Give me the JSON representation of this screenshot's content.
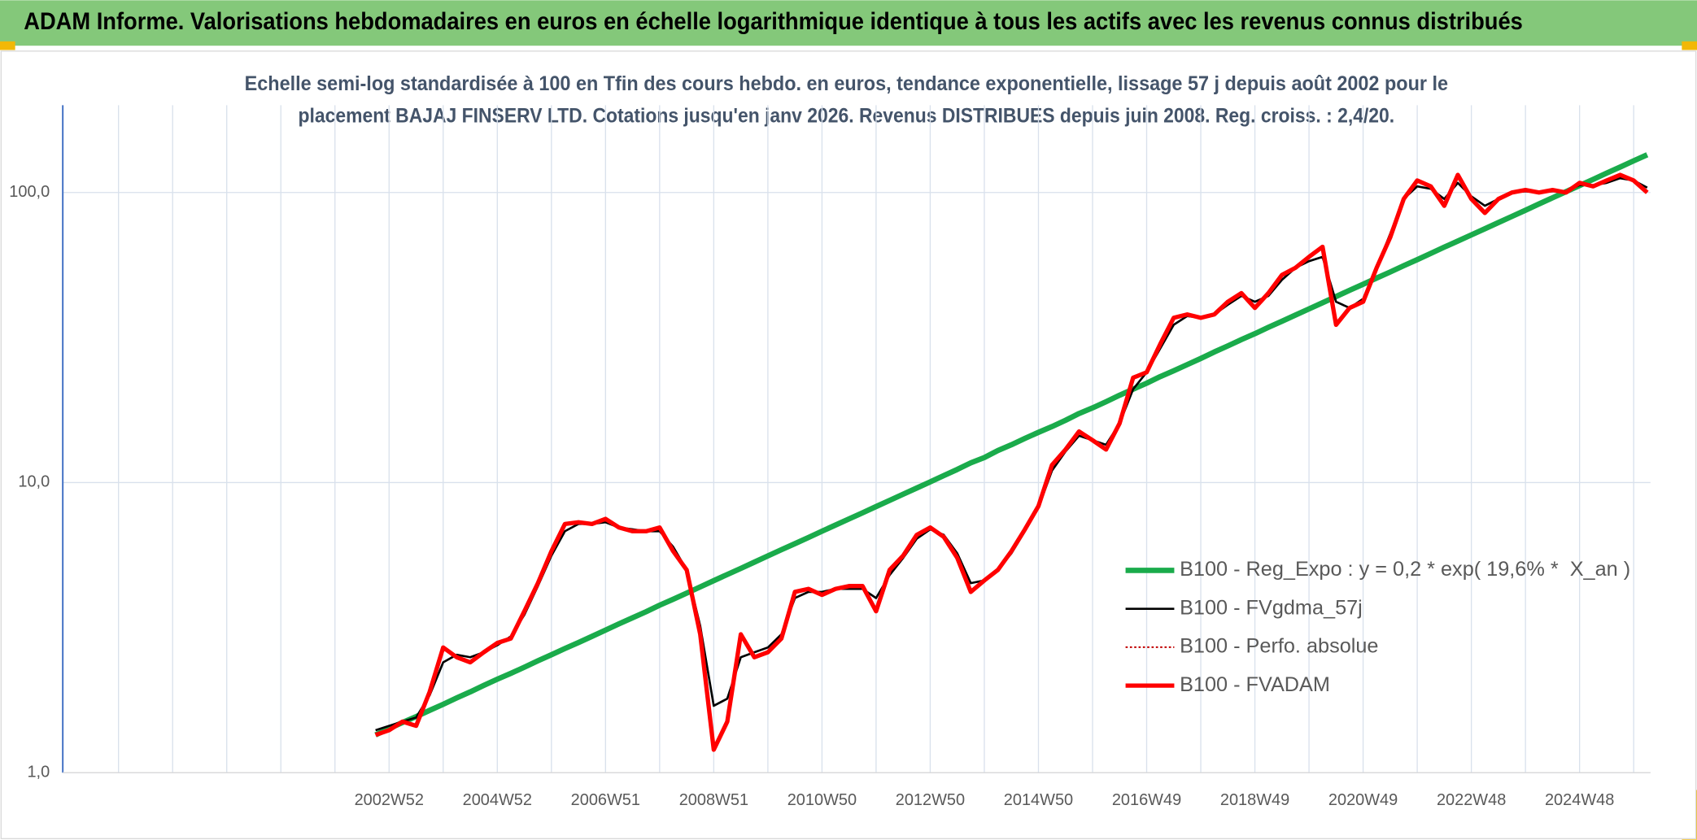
{
  "chart_data": {
    "type": "line",
    "title": "ADAM Informe. Valorisations hebdomadaires en euros en échelle logarithmique identique à tous les actifs avec les revenus connus distribués",
    "subtitle": [
      "Echelle semi-log standardisée à 100 en Tfin des cours hebdo. en euros, tendance exponentielle, lissage 57 j depuis août 2002 pour le",
      "placement BAJAJ FINSERV LTD. Cotations jusqu'en janv 2026. Revenus DISTRIBUES depuis juin 2008. Reg. croiss. : 2,4/20."
    ],
    "categories": [
      null,
      "2002W52",
      null,
      null,
      null,
      null,
      null,
      null,
      null,
      "2004W52",
      null,
      null,
      null,
      null,
      null,
      null,
      null,
      "2006W51",
      null,
      null,
      null,
      null,
      null,
      null,
      null,
      "2008W51",
      null,
      null,
      null,
      null,
      null,
      null,
      null,
      "2010W50",
      null,
      null,
      null,
      null,
      null,
      null,
      null,
      "2012W50",
      null,
      null,
      null,
      null,
      null,
      null,
      null,
      "2014W50",
      null,
      null,
      null,
      null,
      null,
      null,
      null,
      "2016W49",
      null,
      null,
      null,
      null,
      null,
      null,
      null,
      "2018W49",
      null,
      null,
      null,
      null,
      null,
      null,
      null,
      "2020W49",
      null,
      null,
      null,
      null,
      null,
      null,
      null,
      "2022W48",
      null,
      null,
      null,
      null,
      null,
      null,
      null,
      "2024W48",
      null,
      null,
      null,
      null,
      null
    ],
    "log_y": true,
    "ylim": [
      1,
      200
    ],
    "yticks": [
      {
        "value": 1,
        "label": "1,0"
      },
      {
        "value": 10,
        "label": "10,0"
      },
      {
        "value": 100,
        "label": "100,0"
      }
    ],
    "grid": true,
    "legend": "lower right",
    "series": [
      {
        "name": "B100 - Reg_Expo : y = 0,2 * exp( 19,6% *  X_an )",
        "color": "#1aab4b",
        "width": 5,
        "dash": "solid",
        "values": [
          1.35,
          1.42,
          1.49,
          1.56,
          1.64,
          1.72,
          1.81,
          1.9,
          2.0,
          2.1,
          2.2,
          2.31,
          2.43,
          2.55,
          2.68,
          2.81,
          2.95,
          3.1,
          3.26,
          3.42,
          3.59,
          3.78,
          3.96,
          4.16,
          4.37,
          4.59,
          4.82,
          5.06,
          5.32,
          5.59,
          5.87,
          6.16,
          6.47,
          6.8,
          7.14,
          7.5,
          7.87,
          8.27,
          8.68,
          9.12,
          9.58,
          10.06,
          10.57,
          11.1,
          11.7,
          12.2,
          12.9,
          13.5,
          14.2,
          14.9,
          15.6,
          16.4,
          17.3,
          18.1,
          19.0,
          20.0,
          21.0,
          22.0,
          23.2,
          24.3,
          25.5,
          26.8,
          28.2,
          29.6,
          31.1,
          32.6,
          34.3,
          36.0,
          37.8,
          39.7,
          41.7,
          43.8,
          46.0,
          48.3,
          50.7,
          53.2,
          55.9,
          58.7,
          61.7,
          64.8,
          68.0,
          71.4,
          75.0,
          78.8,
          82.7,
          86.9,
          91.3,
          95.9,
          100.7,
          105.7,
          111.0,
          116.6,
          122.4,
          128.6,
          135.0
        ]
      },
      {
        "name": "B100 - FVgdma_57j",
        "color": "#000000",
        "width": 2,
        "dash": "solid",
        "values": [
          1.4,
          1.45,
          1.5,
          1.55,
          1.85,
          2.4,
          2.55,
          2.5,
          2.6,
          2.75,
          2.95,
          3.5,
          4.4,
          5.6,
          6.8,
          7.2,
          7.2,
          7.3,
          7.0,
          6.9,
          6.8,
          6.8,
          6.0,
          5.0,
          3.2,
          1.7,
          1.8,
          2.5,
          2.6,
          2.7,
          3.0,
          4.0,
          4.2,
          4.2,
          4.3,
          4.3,
          4.3,
          4.0,
          4.8,
          5.5,
          6.4,
          6.9,
          6.6,
          5.7,
          4.5,
          4.6,
          5.0,
          5.7,
          6.8,
          8.2,
          11,
          12.8,
          14.5,
          14,
          13.5,
          16,
          21,
          24,
          29,
          35,
          37.5,
          37,
          38,
          41,
          44,
          42,
          44,
          50,
          55,
          58,
          60,
          42,
          40,
          43,
          55,
          72,
          95,
          105,
          103,
          95,
          108,
          97,
          90,
          95,
          100,
          101,
          100,
          101,
          101,
          106,
          106,
          108,
          112,
          110,
          104
        ]
      },
      {
        "name": "B100 - Perfo. absolue",
        "color": "#c00000",
        "width": 1.5,
        "dash": "dotted",
        "values": [
          1.35,
          1.4,
          1.5,
          1.45,
          1.9,
          2.7,
          2.5,
          2.4,
          2.6,
          2.8,
          2.9,
          3.6,
          4.5,
          5.8,
          7.2,
          7.3,
          7.2,
          7.5,
          7.0,
          6.8,
          6.8,
          7.0,
          5.8,
          5.0,
          3.0,
          1.2,
          1.5,
          3.0,
          2.5,
          2.6,
          2.9,
          4.2,
          4.3,
          4.1,
          4.3,
          4.4,
          4.4,
          3.6,
          5.0,
          5.6,
          6.6,
          7.0,
          6.5,
          5.5,
          4.2,
          4.6,
          5.0,
          5.8,
          6.9,
          8.3,
          11.5,
          13,
          15,
          14,
          13,
          16,
          23,
          24,
          30,
          37,
          38,
          37,
          38,
          42,
          45,
          40,
          45,
          52,
          55,
          60,
          65,
          35,
          40,
          42,
          55,
          70,
          95,
          110,
          105,
          90,
          115,
          95,
          85,
          95,
          100,
          102,
          100,
          102,
          100,
          108,
          105,
          110,
          115,
          110,
          100
        ]
      },
      {
        "name": "B100 - FVADAM",
        "color": "#ff0000",
        "width": 4,
        "dash": "solid",
        "values": [
          1.35,
          1.4,
          1.5,
          1.45,
          1.9,
          2.7,
          2.5,
          2.4,
          2.6,
          2.8,
          2.9,
          3.6,
          4.5,
          5.8,
          7.2,
          7.3,
          7.2,
          7.5,
          7.0,
          6.8,
          6.8,
          7.0,
          5.8,
          5.0,
          3.0,
          1.2,
          1.5,
          3.0,
          2.5,
          2.6,
          2.9,
          4.2,
          4.3,
          4.1,
          4.3,
          4.4,
          4.4,
          3.6,
          5.0,
          5.6,
          6.6,
          7.0,
          6.5,
          5.5,
          4.2,
          4.6,
          5.0,
          5.8,
          6.9,
          8.3,
          11.5,
          13,
          15,
          14,
          13,
          16,
          23,
          24,
          30,
          37,
          38,
          37,
          38,
          42,
          45,
          40,
          45,
          52,
          55,
          60,
          65,
          35,
          40,
          42,
          55,
          70,
          95,
          110,
          105,
          90,
          115,
          95,
          85,
          95,
          100,
          102,
          100,
          102,
          100,
          108,
          105,
          110,
          115,
          110,
          100
        ]
      }
    ]
  }
}
